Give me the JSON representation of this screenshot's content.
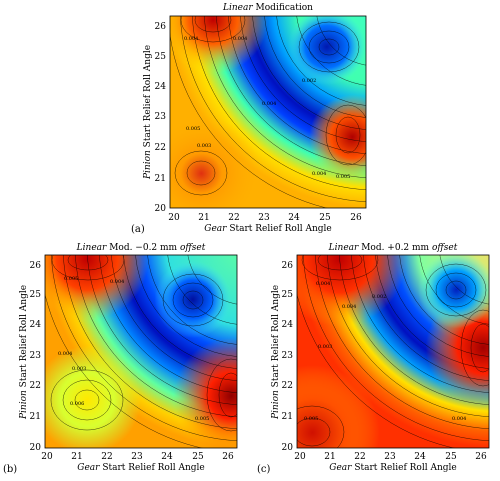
{
  "chart_data": [
    {
      "type": "heatmap",
      "panel_label": "(a)",
      "title_italic": "Linear",
      "title_rest": " Modification",
      "x_label_italic": "Gear",
      "x_label_rest": " Start Relief Roll Angle",
      "y_label_italic": "Pinion",
      "y_label_rest": " Start Relief Roll Angle",
      "x_ticks": [
        "20",
        "21",
        "22",
        "23",
        "24",
        "25",
        "26"
      ],
      "y_ticks": [
        "20",
        "21",
        "22",
        "23",
        "24",
        "25",
        "26"
      ],
      "xlim": [
        20,
        26.3
      ],
      "ylim": [
        20,
        26.3
      ],
      "contour_labels": [
        "0.004",
        "0.004",
        "0.005",
        "0.003",
        "0.004",
        "0.002",
        "0.004",
        "0.005"
      ],
      "colormap": "jet (blue = low, red = high)",
      "grid": false,
      "peaks": [
        {
          "x": 21.2,
          "y": 21.0,
          "value": "high"
        },
        {
          "x": 25.9,
          "y": 22.2,
          "value": "high"
        },
        {
          "x": 21.5,
          "y": 26.1,
          "value": "high"
        },
        {
          "x": 25.1,
          "y": 25.2,
          "value": "low"
        },
        {
          "x": 23.2,
          "y": 23.5,
          "value": "low (arc)"
        }
      ]
    },
    {
      "type": "heatmap",
      "panel_label": "(b)",
      "title_italic": "Linear",
      "title_rest": " Mod. −0.2 mm ",
      "title_italic2": "offset",
      "x_label_italic": "Gear",
      "x_label_rest": " Start Relief Roll Angle",
      "y_label_italic": "Pinion",
      "y_label_rest": " Start Relief Roll Angle",
      "x_ticks": [
        "20",
        "21",
        "22",
        "23",
        "24",
        "25",
        "26"
      ],
      "y_ticks": [
        "20",
        "21",
        "22",
        "23",
        "24",
        "25",
        "26"
      ],
      "xlim": [
        20,
        26.3
      ],
      "ylim": [
        20,
        26.3
      ],
      "contour_labels": [
        "0.005",
        "0.004",
        "0.004",
        "0.003",
        "0.006",
        "0.005"
      ],
      "colormap": "jet (blue = low, red = high)",
      "grid": false,
      "peaks": [
        {
          "x": 21.4,
          "y": 21.4,
          "value": "high"
        },
        {
          "x": 26.0,
          "y": 21.5,
          "value": "high"
        },
        {
          "x": 21.5,
          "y": 26.1,
          "value": "high"
        },
        {
          "x": 24.8,
          "y": 24.9,
          "value": "low"
        }
      ]
    },
    {
      "type": "heatmap",
      "panel_label": "(c)",
      "title_italic": "Linear",
      "title_rest": " Mod. +0.2 mm ",
      "title_italic2": "offset",
      "x_label_italic": "Gear",
      "x_label_rest": " Start Relief Roll Angle",
      "y_label_italic": "Pinion",
      "y_label_rest": " Start Relief Roll Angle",
      "x_ticks": [
        "20",
        "21",
        "22",
        "23",
        "24",
        "25",
        "26"
      ],
      "y_ticks": [
        "20",
        "21",
        "22",
        "23",
        "24",
        "25",
        "26"
      ],
      "xlim": [
        20,
        26.3
      ],
      "ylim": [
        20,
        26.3
      ],
      "contour_labels": [
        "0.004",
        "0.003",
        "0.004",
        "0.002",
        "0.005",
        "0.004"
      ],
      "colormap": "jet (blue = low, red = high)",
      "grid": false,
      "peaks": [
        {
          "x": 20.5,
          "y": 20.5,
          "value": "high"
        },
        {
          "x": 26.0,
          "y": 23.0,
          "value": "high"
        },
        {
          "x": 21.5,
          "y": 26.1,
          "value": "high"
        },
        {
          "x": 25.4,
          "y": 25.3,
          "value": "low"
        }
      ]
    }
  ]
}
